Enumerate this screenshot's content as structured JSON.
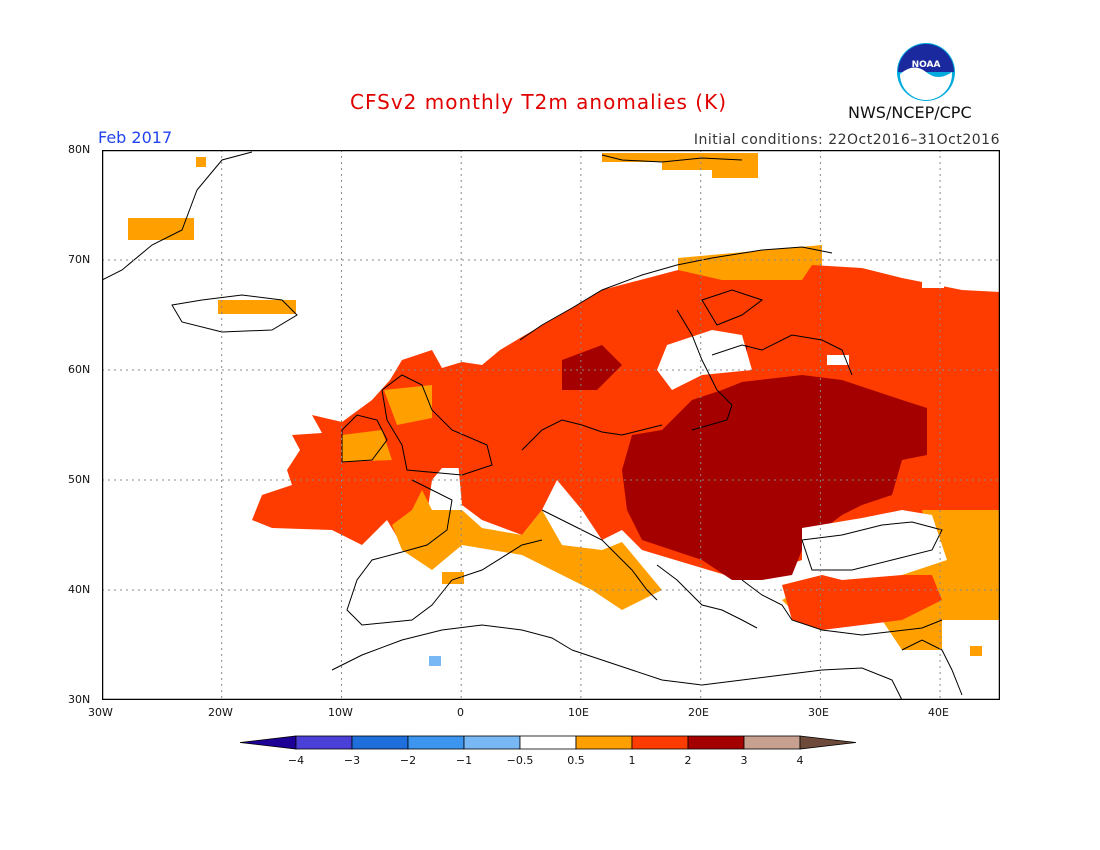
{
  "title": "CFSv2 monthly T2m anomalies (K)",
  "forecast_month": "Feb 2017",
  "initial_conditions": "Initial conditions: 22Oct2016–31Oct2016",
  "organization": "NWS/NCEP/CPC",
  "logo_text": "NOAA",
  "map": {
    "region": "Europe",
    "lon_range": [
      -30,
      45
    ],
    "lat_range": [
      30,
      80
    ],
    "lon_ticks": [
      "30W",
      "20W",
      "10W",
      "0",
      "10E",
      "20E",
      "30E",
      "40E"
    ],
    "lat_ticks": [
      "80N",
      "70N",
      "60N",
      "50N",
      "40N",
      "30N"
    ],
    "grid": "dotted"
  },
  "colorbar": {
    "labels": [
      "−4",
      "−3",
      "−2",
      "−1",
      "−0.5",
      "0.5",
      "1",
      "2",
      "3",
      "4"
    ],
    "colors": [
      "#1e0096",
      "#4a40d8",
      "#1e6edc",
      "#3c96f0",
      "#78b9f5",
      "#ffffff",
      "#ffa000",
      "#ff3c00",
      "#a50000",
      "#c8a090",
      "#6e4a3a"
    ]
  },
  "anomaly_colors": {
    "orange": "#ffa000",
    "red": "#ff3c00",
    "darkred": "#a50000",
    "lightblue": "#78b9f5"
  }
}
